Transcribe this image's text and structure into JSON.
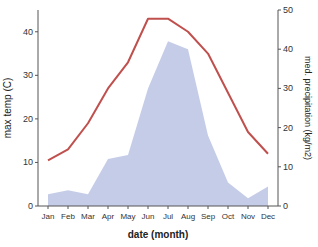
{
  "chart_data": {
    "type": "line",
    "xlabel": "date (month)",
    "ylabel": "max temp (C)",
    "y2label": "med. precipitation (kg/m2)",
    "categories": [
      "Jan",
      "Feb",
      "Mar",
      "Apr",
      "May",
      "Jun",
      "Jul",
      "Aug",
      "Sep",
      "Oct",
      "Nov",
      "Dec"
    ],
    "series": [
      {
        "type": "area",
        "axis": "y2",
        "color": "#c5cce8",
        "values": [
          3,
          4,
          3,
          12,
          13,
          30,
          42,
          40,
          18,
          6,
          2,
          5
        ]
      },
      {
        "type": "line",
        "color": "#c0504d",
        "values": [
          10.5,
          13,
          19,
          27,
          33,
          43,
          43,
          40,
          35,
          26,
          17,
          12
        ]
      }
    ],
    "ylim": [
      0,
      45
    ],
    "yticks": [
      0,
      10,
      20,
      30,
      40
    ],
    "y2lim": [
      0,
      50
    ],
    "y2ticks": [
      0,
      10,
      20,
      30,
      40,
      50
    ],
    "grid": false
  }
}
